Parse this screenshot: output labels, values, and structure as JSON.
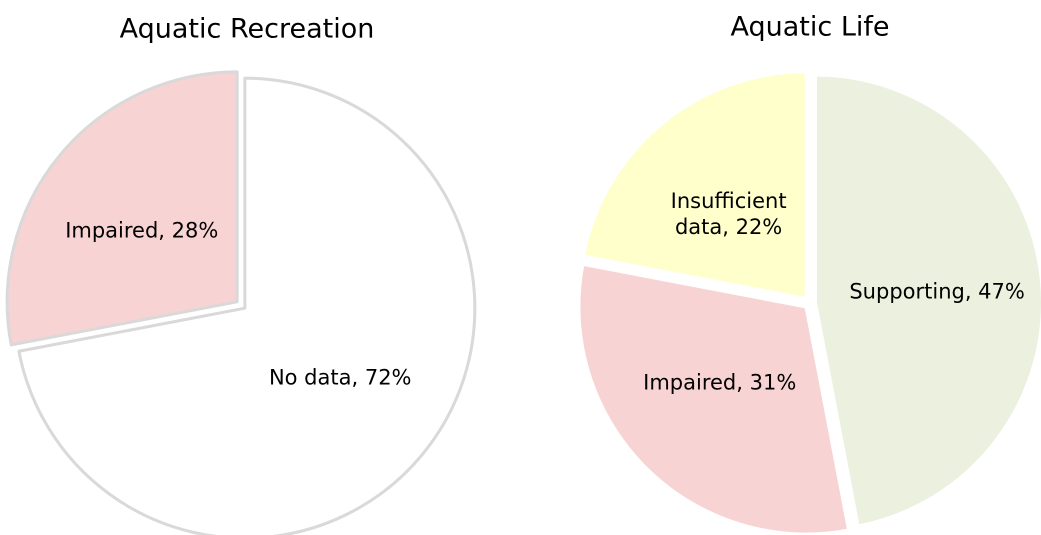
{
  "chart_data": [
    {
      "type": "pie",
      "title": "Aquatic Recreation",
      "values": [
        72,
        28
      ],
      "value_labels": [
        "No data, 72%",
        "Impaired, 28%"
      ],
      "colors": [
        "#ffffff",
        "#f8d3d3"
      ],
      "edge_color": "#d9d9d9"
    },
    {
      "type": "pie",
      "title": "Aquatic Life",
      "values": [
        47,
        31,
        22
      ],
      "value_labels": [
        "Supporting, 47%",
        "Impaired, 31%",
        "Insufficient\ndata, 22%"
      ],
      "colors": [
        "#ebf1de",
        "#f8d3d3",
        "#ffffcc"
      ],
      "edge_color": "#ffffff"
    }
  ]
}
